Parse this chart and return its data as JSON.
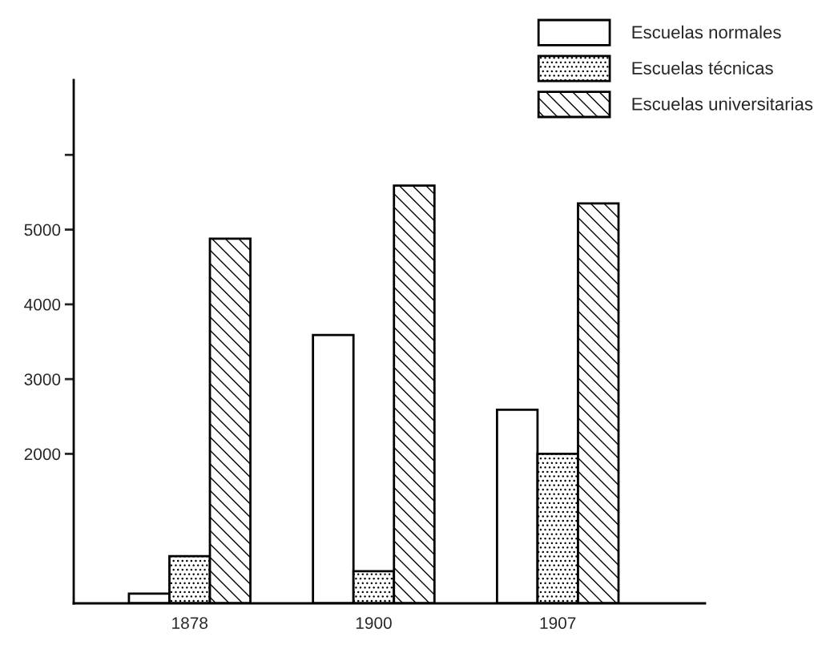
{
  "chart_data": {
    "type": "bar",
    "categories": [
      "1878",
      "1900",
      "1907"
    ],
    "series": [
      {
        "name": "Escuelas normales",
        "color": "#ffffff",
        "values": [
          130,
          3590,
          2590
        ]
      },
      {
        "name": "Escuelas técnicas",
        "color": "#000000",
        "values": [
          630,
          430,
          2000
        ]
      },
      {
        "name": "Escuelas universitarias",
        "color": "#000000",
        "values": [
          4880,
          5590,
          5350
        ]
      }
    ],
    "ylim": [
      0,
      7000
    ],
    "yticks": [
      2000,
      3000,
      4000,
      5000,
      {
        "value": 6000,
        "label": null
      }
    ],
    "grid": false,
    "legend": "top right"
  }
}
